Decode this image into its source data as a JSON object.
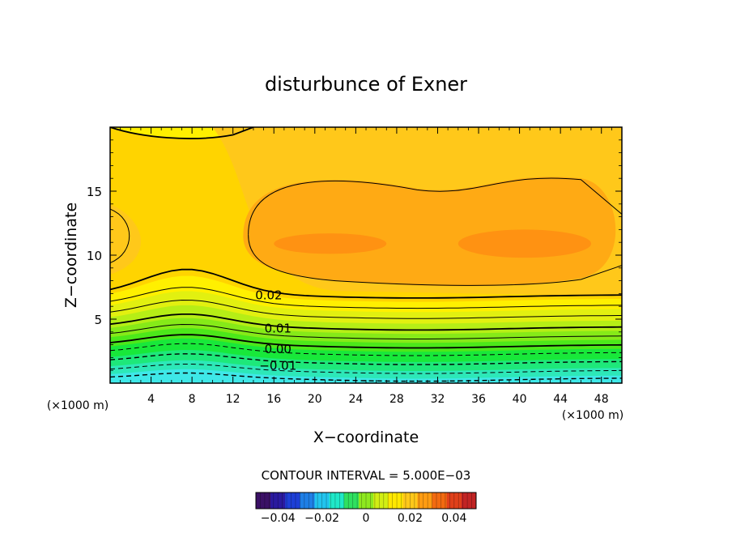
{
  "chart_data": {
    "type": "heatmap",
    "title": "disturbunce of Exner",
    "xlabel": "X−coordinate",
    "ylabel": "Z−coordinate",
    "x_unit_label": "(×1000 m)",
    "y_unit_label": "(×1000 m)",
    "xlim": [
      0,
      50
    ],
    "ylim": [
      0,
      20
    ],
    "x_ticks": [
      4,
      8,
      12,
      16,
      20,
      24,
      28,
      32,
      36,
      40,
      44,
      48
    ],
    "y_ticks": [
      5,
      10,
      15
    ],
    "contour_interval_label": "CONTOUR INTERVAL = 5.000E−03",
    "contour_labels": [
      {
        "text": "0.02",
        "x": 15.5,
        "z": 6.8
      },
      {
        "text": "0.01",
        "x": 16.4,
        "z": 4.2
      },
      {
        "text": "0.00",
        "x": 16.4,
        "z": 2.6
      },
      {
        "text": "−0.01",
        "x": 16.4,
        "z": 1.3
      }
    ],
    "colorbar": {
      "range": [
        -0.05,
        0.05
      ],
      "ticks": [
        -0.04,
        -0.02,
        0,
        0.02,
        0.04
      ],
      "tick_labels": [
        "−0.04",
        "−0.02",
        "0",
        "0.02",
        "0.04"
      ],
      "colors": [
        "#3b1066",
        "#2a1aa0",
        "#1d3fd6",
        "#1f7fe6",
        "#22c4ee",
        "#1fe8c8",
        "#2fe060",
        "#8ee81f",
        "#d2ee14",
        "#ffe800",
        "#ffc81a",
        "#ff9c12",
        "#f26a10",
        "#e0401a",
        "#c22424"
      ]
    }
  }
}
